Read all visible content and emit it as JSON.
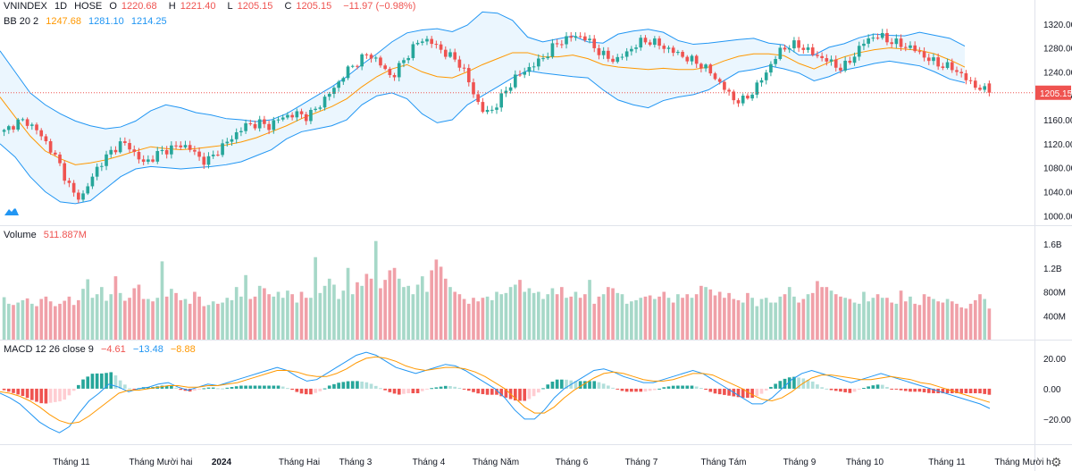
{
  "header": {
    "symbol": "VNINDEX",
    "interval": "1D",
    "exchange": "HOSE",
    "open": "1220.68",
    "high": "1221.40",
    "low": "1205.15",
    "close": "1205.15",
    "change": "−11.97 (−0.98%)",
    "O": "O",
    "H": "H",
    "L": "L",
    "C": "C"
  },
  "bb_legend": {
    "name": "BB 20 2",
    "basis": "1247.68",
    "upper": "1281.10",
    "lower": "1214.25"
  },
  "volume_legend": {
    "name": "Volume",
    "value": "511.887M"
  },
  "macd_legend": {
    "name": "MACD 12 26 close 9",
    "hist": "−4.61",
    "macd": "−13.48",
    "signal": "−8.88"
  },
  "colors": {
    "up": "#26a69a",
    "down": "#ef5350",
    "up_vol": "#a6d8c8",
    "down_vol": "#f0a0a8",
    "bb": "#2196f3",
    "basis": "#ff9800",
    "fill": "#e3f2fd"
  },
  "icons": {
    "logo": "tradingview-logo-icon",
    "settings": "gear-icon"
  },
  "chart_data": [
    {
      "type": "candlestick",
      "title": "VNINDEX 1D HOSE",
      "ylim": [
        990,
        1345
      ],
      "y_ticks": [
        "1320.00",
        "1280.00",
        "1240.00",
        "1200.00",
        "1160.00",
        "1120.00",
        "1080.00",
        "1040.00",
        "1000.00"
      ],
      "last_price": "1205.15",
      "x_labels": [
        "Tháng 11",
        "Tháng Mười hai",
        "2024",
        "Tháng Hai",
        "Tháng 3",
        "Tháng 4",
        "Tháng Năm",
        "Tháng 6",
        "Tháng 7",
        "Tháng Tám",
        "Tháng 9",
        "Tháng 10",
        "Tháng 11",
        "Tháng Mười h"
      ],
      "close_path": [
        1140,
        1150,
        1158,
        1156,
        1145,
        1130,
        1110,
        1090,
        1060,
        1035,
        1030,
        1055,
        1080,
        1095,
        1110,
        1120,
        1118,
        1100,
        1088,
        1095,
        1105,
        1110,
        1115,
        1118,
        1112,
        1098,
        1090,
        1100,
        1115,
        1125,
        1138,
        1150,
        1152,
        1155,
        1148,
        1158,
        1165,
        1168,
        1170,
        1165,
        1175,
        1190,
        1205,
        1220,
        1240,
        1250,
        1262,
        1270,
        1260,
        1245,
        1230,
        1250,
        1268,
        1285,
        1295,
        1290,
        1280,
        1270,
        1262,
        1250,
        1220,
        1190,
        1170,
        1178,
        1195,
        1215,
        1232,
        1240,
        1250,
        1258,
        1270,
        1285,
        1292,
        1298,
        1300,
        1296,
        1282,
        1270,
        1262,
        1260,
        1270,
        1280,
        1290,
        1292,
        1288,
        1282,
        1275,
        1270,
        1262,
        1258,
        1250,
        1240,
        1225,
        1210,
        1195,
        1190,
        1200,
        1215,
        1235,
        1255,
        1275,
        1283,
        1285,
        1281,
        1272,
        1265,
        1260,
        1252,
        1245,
        1258,
        1275,
        1292,
        1298,
        1300,
        1292,
        1288,
        1283,
        1280,
        1272,
        1262,
        1256,
        1250,
        1248,
        1240,
        1228,
        1218,
        1211,
        1205
      ],
      "bb_upper": [
        1275,
        1240,
        1205,
        1185,
        1170,
        1158,
        1150,
        1145,
        1148,
        1158,
        1175,
        1185,
        1180,
        1172,
        1168,
        1162,
        1160,
        1157,
        1160,
        1170,
        1185,
        1200,
        1215,
        1232,
        1252,
        1270,
        1290,
        1305,
        1310,
        1312,
        1307,
        1318,
        1340,
        1338,
        1326,
        1298,
        1290,
        1295,
        1300,
        1290,
        1288,
        1303,
        1308,
        1311,
        1306,
        1292,
        1286,
        1288,
        1291,
        1294,
        1296,
        1288,
        1285,
        1268,
        1268,
        1281,
        1287,
        1297,
        1303,
        1301,
        1300,
        1306,
        1301,
        1296,
        1283
      ],
      "bb_lower": [
        1120,
        1098,
        1065,
        1040,
        1023,
        1020,
        1025,
        1045,
        1065,
        1078,
        1082,
        1080,
        1078,
        1080,
        1082,
        1085,
        1090,
        1100,
        1110,
        1128,
        1140,
        1145,
        1150,
        1160,
        1185,
        1200,
        1205,
        1195,
        1170,
        1155,
        1160,
        1185,
        1200,
        1215,
        1230,
        1242,
        1238,
        1235,
        1232,
        1230,
        1210,
        1193,
        1185,
        1180,
        1192,
        1198,
        1202,
        1210,
        1225,
        1240,
        1244,
        1250,
        1245,
        1238,
        1225,
        1232,
        1243,
        1248,
        1254,
        1258,
        1254,
        1250,
        1240,
        1228,
        1222
      ],
      "bb_basis": [
        1198,
        1165,
        1133,
        1108,
        1095,
        1085,
        1088,
        1093,
        1100,
        1108,
        1115,
        1112,
        1110,
        1112,
        1115,
        1118,
        1123,
        1130,
        1140,
        1150,
        1162,
        1172,
        1182,
        1195,
        1215,
        1232,
        1245,
        1252,
        1240,
        1232,
        1230,
        1240,
        1252,
        1262,
        1272,
        1272,
        1265,
        1265,
        1268,
        1262,
        1252,
        1248,
        1246,
        1244,
        1246,
        1244,
        1244,
        1248,
        1258,
        1266,
        1270,
        1270,
        1267,
        1254,
        1245,
        1256,
        1265,
        1272,
        1277,
        1280,
        1278,
        1276,
        1270,
        1260,
        1248
      ]
    },
    {
      "type": "bar",
      "title": "Volume",
      "ylim": [
        0,
        1750
      ],
      "y_ticks": [
        "1.6B",
        "1.2B",
        "800M",
        "400M"
      ],
      "last_value": "511.887M",
      "values": [
        710,
        600,
        580,
        620,
        660,
        690,
        600,
        560,
        680,
        720,
        640,
        560,
        600,
        650,
        720,
        580,
        660,
        850,
        1010,
        700,
        760,
        880,
        650,
        760,
        1060,
        780,
        650,
        700,
        860,
        920,
        680,
        680,
        640,
        700,
        1310,
        720,
        850,
        780,
        660,
        680,
        600,
        800,
        720,
        560,
        580,
        640,
        600,
        620,
        700,
        660,
        880,
        720,
        1080,
        680,
        720,
        900,
        860,
        760,
        720,
        800,
        700,
        820,
        760,
        620,
        800,
        700,
        700,
        1380,
        780,
        900,
        1020,
        920,
        680,
        820,
        1200,
        760,
        960,
        900,
        1100,
        1020,
        1650,
        860,
        1000,
        1160,
        1200,
        1020,
        880,
        900,
        760,
        920,
        1060,
        800,
        1160,
        1340,
        1220,
        1020,
        880,
        800,
        760,
        680,
        600,
        700,
        640,
        700,
        720,
        660,
        800,
        760,
        780,
        880,
        920,
        1000,
        800,
        860,
        780,
        800,
        680,
        760,
        860,
        760,
        880,
        700,
        720,
        800,
        700,
        760,
        1000,
        600,
        720,
        760,
        880,
        860,
        780,
        760,
        600,
        640,
        660,
        700,
        720,
        740,
        680,
        720,
        800,
        700,
        620,
        760,
        700,
        760,
        700,
        760,
        900,
        880,
        840,
        740,
        800,
        700,
        780,
        680,
        660,
        620,
        780,
        700,
        560,
        680,
        700,
        620,
        620,
        720,
        760,
        880,
        720,
        620,
        680,
        760,
        780,
        980,
        880,
        880,
        820,
        760,
        720,
        700,
        680,
        620,
        600,
        800,
        640,
        700,
        760,
        700,
        700,
        620,
        600,
        820,
        640,
        720,
        600,
        580,
        760,
        720,
        680,
        640,
        620,
        680,
        640,
        600,
        540,
        520,
        600,
        660,
        760,
        680,
        520
      ],
      "up_flags_note": "colour per bar follows the candle direction"
    },
    {
      "type": "line",
      "title": "MACD 12 26 close 9",
      "ylim": [
        -33,
        27
      ],
      "y_ticks": [
        "20.00",
        "0.00",
        "−20.00"
      ],
      "series": [
        {
          "name": "MACD",
          "values": [
            -3,
            -6,
            -10,
            -16,
            -22,
            -26,
            -29,
            -25,
            -16,
            -8,
            -3,
            3,
            1,
            -2,
            0,
            1,
            3,
            4,
            1,
            -1,
            1,
            3,
            2,
            4,
            6,
            8,
            10,
            12,
            14,
            12,
            8,
            5,
            6,
            10,
            14,
            18,
            22,
            24,
            22,
            18,
            14,
            12,
            10,
            12,
            14,
            16,
            15,
            12,
            8,
            4,
            0,
            -6,
            -14,
            -20,
            -20,
            -14,
            -6,
            0,
            4,
            8,
            12,
            13,
            11,
            8,
            6,
            4,
            4,
            6,
            8,
            10,
            12,
            10,
            6,
            2,
            -2,
            -6,
            -10,
            -10,
            -6,
            0,
            6,
            10,
            12,
            10,
            8,
            6,
            4,
            6,
            8,
            10,
            8,
            6,
            4,
            2,
            0,
            -2,
            -4,
            -6,
            -8,
            -10,
            -13
          ]
        },
        {
          "name": "Signal",
          "values": [
            -2,
            -3,
            -5,
            -8,
            -12,
            -17,
            -21,
            -23,
            -22,
            -18,
            -13,
            -8,
            -3,
            -1,
            -1,
            0,
            1,
            2,
            2,
            1,
            1,
            2,
            2,
            3,
            4,
            6,
            8,
            10,
            12,
            12,
            11,
            9,
            8,
            8,
            10,
            13,
            17,
            20,
            21,
            20,
            18,
            15,
            13,
            12,
            13,
            14,
            14,
            13,
            11,
            8,
            4,
            0,
            -6,
            -12,
            -16,
            -16,
            -12,
            -6,
            -1,
            3,
            7,
            10,
            11,
            10,
            8,
            6,
            5,
            5,
            6,
            8,
            10,
            10,
            9,
            6,
            3,
            0,
            -4,
            -7,
            -8,
            -6,
            -2,
            3,
            7,
            9,
            9,
            8,
            7,
            6,
            6,
            7,
            8,
            7,
            6,
            4,
            3,
            1,
            -1,
            -3,
            -5,
            -7,
            -9
          ]
        }
      ]
    }
  ]
}
